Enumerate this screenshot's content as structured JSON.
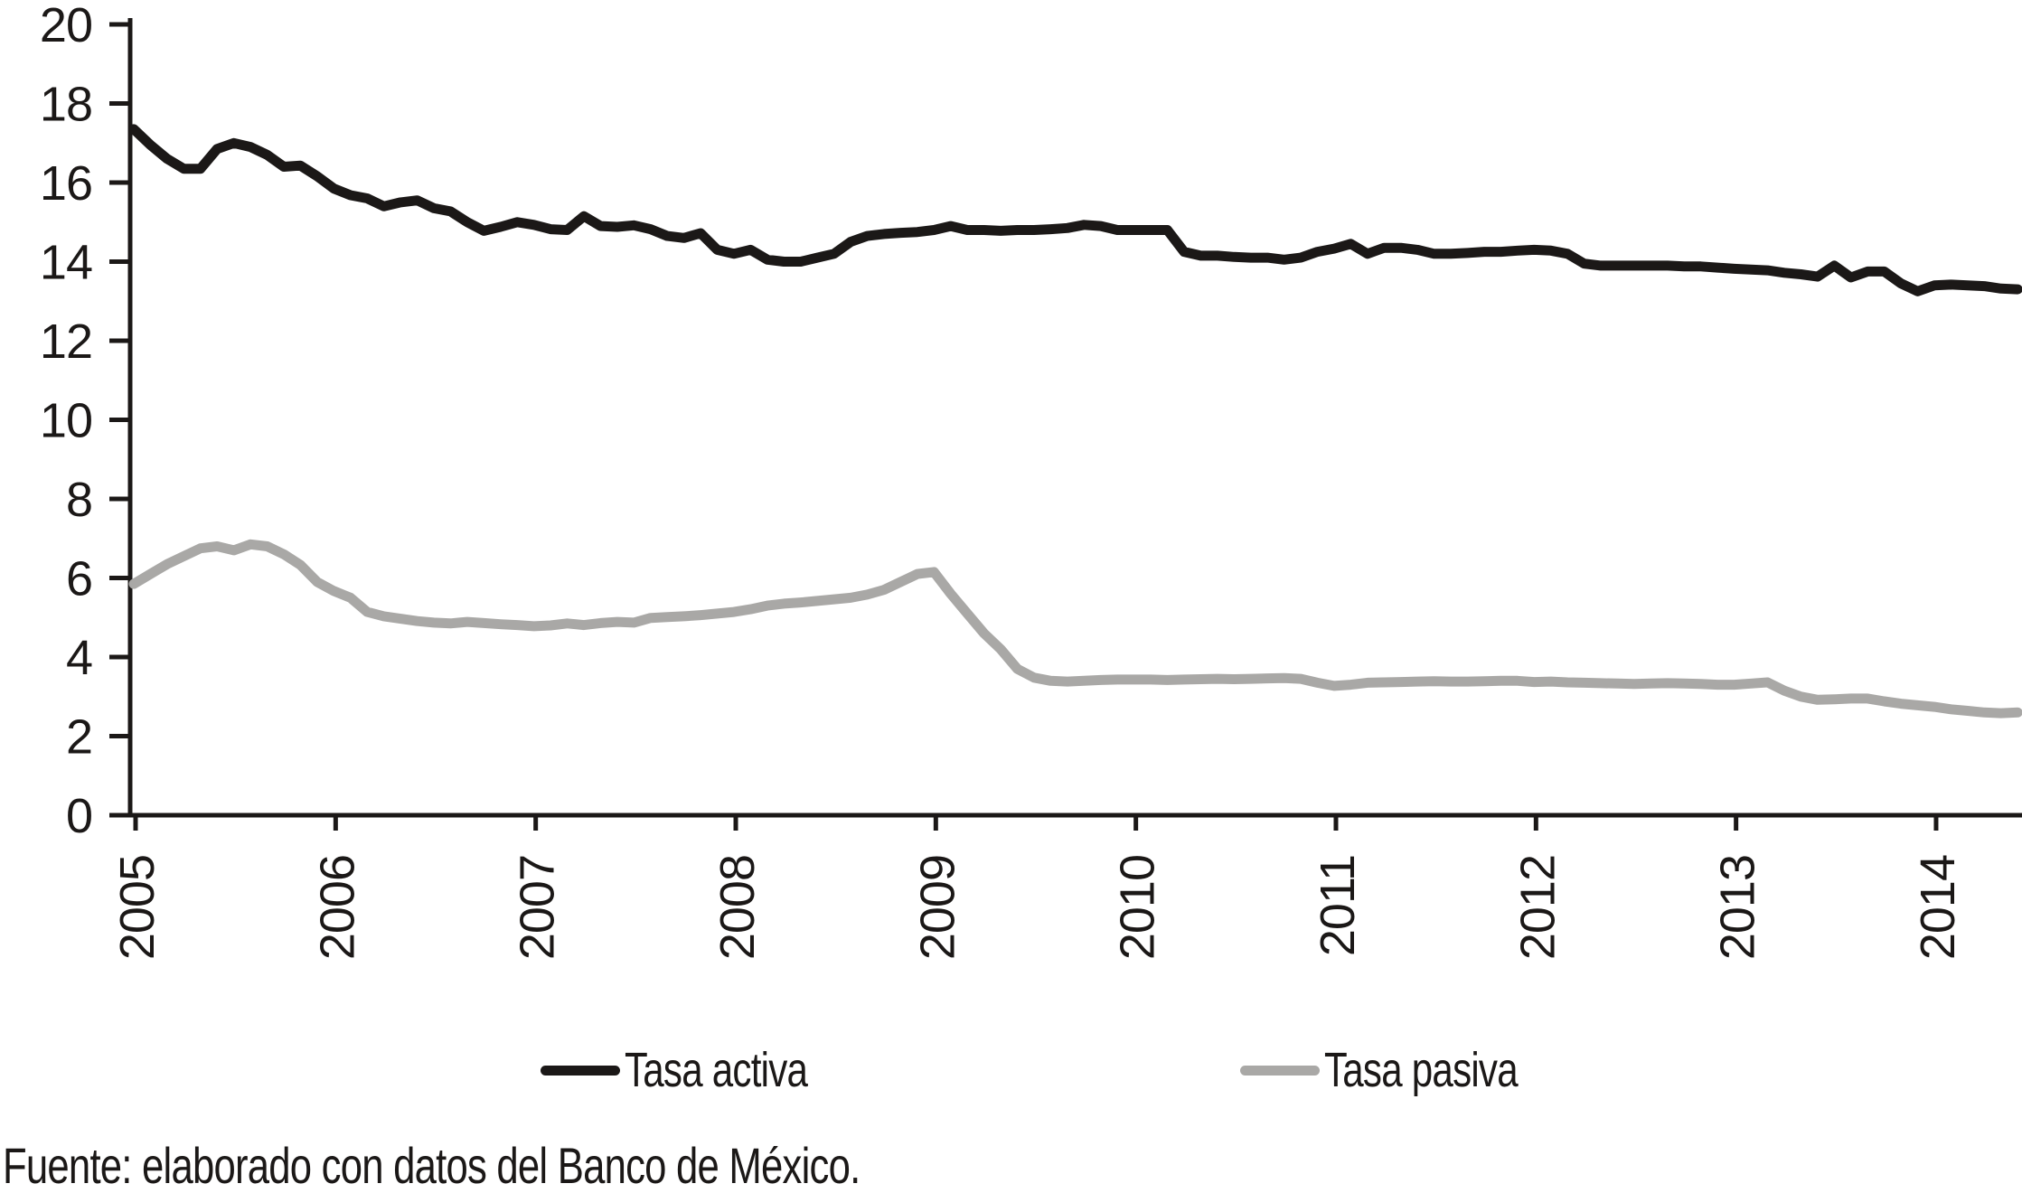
{
  "chart_data": {
    "type": "line",
    "title": "",
    "xlabel": "",
    "ylabel": "",
    "ylim": [
      0,
      20
    ],
    "y_tick_step": 2,
    "y_ticks": [
      0,
      2,
      4,
      6,
      8,
      10,
      12,
      14,
      16,
      18,
      20
    ],
    "x_tick_labels": [
      "2005",
      "2006",
      "2007",
      "2008",
      "2009",
      "2010",
      "2011",
      "2012",
      "2013",
      "2014"
    ],
    "x_start_year": 2005,
    "points_per_year": 12,
    "grid": false,
    "legend_position": "bottom",
    "axis_color": "#1b1817",
    "series": [
      {
        "name": "Tasa activa",
        "color": "#1b1817",
        "values": [
          17.35,
          16.95,
          16.6,
          16.35,
          16.35,
          16.85,
          17.0,
          16.9,
          16.7,
          16.4,
          16.43,
          16.16,
          15.85,
          15.68,
          15.6,
          15.4,
          15.5,
          15.55,
          15.35,
          15.27,
          15.0,
          14.78,
          14.88,
          15.0,
          14.93,
          14.82,
          14.8,
          15.15,
          14.9,
          14.88,
          14.92,
          14.82,
          14.65,
          14.6,
          14.72,
          14.3,
          14.2,
          14.3,
          14.05,
          14.0,
          14.0,
          14.1,
          14.2,
          14.5,
          14.65,
          14.7,
          14.73,
          14.75,
          14.8,
          14.9,
          14.8,
          14.8,
          14.78,
          14.8,
          14.8,
          14.82,
          14.85,
          14.93,
          14.9,
          14.8,
          14.8,
          14.8,
          14.8,
          14.25,
          14.15,
          14.15,
          14.12,
          14.1,
          14.1,
          14.05,
          14.1,
          14.25,
          14.33,
          14.45,
          14.2,
          14.35,
          14.35,
          14.3,
          14.2,
          14.2,
          14.22,
          14.25,
          14.25,
          14.28,
          14.3,
          14.28,
          14.2,
          13.95,
          13.9,
          13.9,
          13.9,
          13.9,
          13.9,
          13.88,
          13.88,
          13.85,
          13.82,
          13.8,
          13.78,
          13.72,
          13.68,
          13.62,
          13.9,
          13.6,
          13.75,
          13.75,
          13.45,
          13.25,
          13.4,
          13.42,
          13.4,
          13.38,
          13.32,
          13.3
        ]
      },
      {
        "name": "Tasa pasiva",
        "color": "#a9a8a6",
        "values": [
          5.85,
          6.1,
          6.35,
          6.55,
          6.75,
          6.8,
          6.7,
          6.85,
          6.8,
          6.6,
          6.33,
          5.9,
          5.67,
          5.5,
          5.14,
          5.03,
          4.97,
          4.91,
          4.87,
          4.85,
          4.89,
          4.86,
          4.83,
          4.81,
          4.78,
          4.8,
          4.85,
          4.81,
          4.86,
          4.89,
          4.87,
          4.99,
          5.01,
          5.03,
          5.06,
          5.1,
          5.14,
          5.21,
          5.3,
          5.35,
          5.38,
          5.42,
          5.46,
          5.5,
          5.58,
          5.7,
          5.9,
          6.1,
          6.15,
          5.6,
          5.1,
          4.6,
          4.2,
          3.7,
          3.48,
          3.4,
          3.38,
          3.4,
          3.42,
          3.43,
          3.43,
          3.43,
          3.42,
          3.43,
          3.44,
          3.45,
          3.44,
          3.45,
          3.46,
          3.47,
          3.45,
          3.35,
          3.27,
          3.3,
          3.35,
          3.36,
          3.37,
          3.38,
          3.39,
          3.38,
          3.38,
          3.39,
          3.4,
          3.4,
          3.37,
          3.38,
          3.36,
          3.35,
          3.34,
          3.33,
          3.32,
          3.33,
          3.34,
          3.33,
          3.32,
          3.3,
          3.3,
          3.33,
          3.36,
          3.15,
          3.0,
          2.92,
          2.93,
          2.95,
          2.95,
          2.88,
          2.82,
          2.78,
          2.74,
          2.68,
          2.64,
          2.6,
          2.58,
          2.6
        ]
      }
    ]
  },
  "legend": {
    "items": [
      {
        "label": "Tasa activa",
        "color": "#1b1817"
      },
      {
        "label": "Tasa pasiva",
        "color": "#a9a8a6"
      }
    ]
  },
  "footer": {
    "source_note": "Fuente: elaborado con datos del Banco de México."
  }
}
